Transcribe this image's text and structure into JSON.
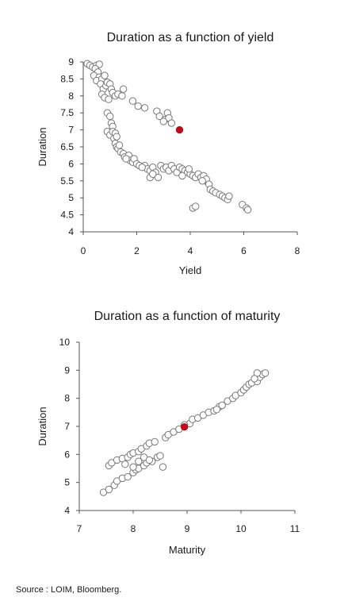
{
  "source": "Source : LOIM, Bloomberg.",
  "colors": {
    "point_fill": "#ffffff",
    "point_stroke": "#777777",
    "highlight": "#b3121d",
    "axis": "#555555"
  },
  "chart_data": [
    {
      "type": "scatter",
      "title": "Duration as a function of yield",
      "xlabel": "Yield",
      "ylabel": "Duration",
      "xlim": [
        0,
        8
      ],
      "ylim": [
        4,
        9
      ],
      "xticks": [
        "0",
        "2",
        "4",
        "6",
        "8"
      ],
      "yticks": [
        "4",
        "4.5",
        "5",
        "5.5",
        "6",
        "6.5",
        "7",
        "7.5",
        "8",
        "8.5",
        "9"
      ],
      "grid": false,
      "points": [
        [
          0.15,
          8.95
        ],
        [
          0.25,
          8.9
        ],
        [
          0.35,
          8.85
        ],
        [
          0.5,
          8.9
        ],
        [
          0.6,
          8.93
        ],
        [
          0.45,
          8.8
        ],
        [
          0.55,
          8.7
        ],
        [
          0.4,
          8.6
        ],
        [
          0.6,
          8.55
        ],
        [
          0.5,
          8.45
        ],
        [
          0.7,
          8.5
        ],
        [
          0.8,
          8.6
        ],
        [
          0.65,
          8.35
        ],
        [
          0.75,
          8.2
        ],
        [
          0.7,
          8.05
        ],
        [
          0.8,
          7.95
        ],
        [
          0.85,
          8.3
        ],
        [
          0.9,
          8.4
        ],
        [
          1.0,
          8.35
        ],
        [
          1.05,
          8.2
        ],
        [
          1.1,
          8.1
        ],
        [
          0.95,
          7.9
        ],
        [
          1.2,
          8.0
        ],
        [
          1.3,
          8.05
        ],
        [
          1.45,
          8.0
        ],
        [
          1.5,
          8.2
        ],
        [
          1.85,
          7.85
        ],
        [
          2.05,
          7.7
        ],
        [
          2.3,
          7.65
        ],
        [
          2.75,
          7.55
        ],
        [
          2.85,
          7.4
        ],
        [
          3.05,
          7.3
        ],
        [
          3.15,
          7.5
        ],
        [
          3.2,
          7.35
        ],
        [
          3.3,
          7.2
        ],
        [
          3.0,
          7.25
        ],
        [
          0.9,
          7.5
        ],
        [
          1.0,
          7.4
        ],
        [
          1.05,
          7.2
        ],
        [
          1.1,
          7.1
        ],
        [
          0.9,
          6.95
        ],
        [
          1.0,
          6.85
        ],
        [
          1.15,
          6.75
        ],
        [
          1.2,
          6.6
        ],
        [
          1.25,
          6.5
        ],
        [
          1.3,
          6.45
        ],
        [
          1.1,
          6.95
        ],
        [
          1.2,
          6.9
        ],
        [
          1.25,
          6.8
        ],
        [
          1.4,
          6.35
        ],
        [
          1.5,
          6.3
        ],
        [
          1.55,
          6.2
        ],
        [
          1.7,
          6.25
        ],
        [
          1.75,
          6.1
        ],
        [
          1.85,
          6.05
        ],
        [
          1.9,
          6.15
        ],
        [
          2.0,
          6.0
        ],
        [
          2.1,
          5.95
        ],
        [
          2.3,
          5.95
        ],
        [
          2.4,
          5.85
        ],
        [
          2.5,
          5.8
        ],
        [
          2.6,
          5.9
        ],
        [
          2.7,
          5.75
        ],
        [
          2.8,
          5.6
        ],
        [
          2.9,
          5.95
        ],
        [
          3.0,
          5.85
        ],
        [
          3.1,
          5.9
        ],
        [
          3.2,
          5.8
        ],
        [
          3.3,
          5.95
        ],
        [
          3.4,
          5.85
        ],
        [
          3.5,
          5.75
        ],
        [
          3.6,
          5.9
        ],
        [
          3.7,
          5.85
        ],
        [
          3.8,
          5.8
        ],
        [
          3.9,
          5.75
        ],
        [
          4.0,
          5.7
        ],
        [
          4.1,
          5.65
        ],
        [
          4.2,
          5.6
        ],
        [
          4.3,
          5.7
        ],
        [
          4.4,
          5.6
        ],
        [
          4.5,
          5.65
        ],
        [
          4.55,
          5.5
        ],
        [
          4.6,
          5.55
        ],
        [
          4.7,
          5.4
        ],
        [
          4.75,
          5.25
        ],
        [
          4.85,
          5.2
        ],
        [
          4.95,
          5.15
        ],
        [
          5.1,
          5.1
        ],
        [
          5.2,
          5.05
        ],
        [
          5.3,
          5.0
        ],
        [
          5.4,
          4.95
        ],
        [
          5.45,
          5.05
        ],
        [
          4.1,
          4.7
        ],
        [
          4.2,
          4.75
        ],
        [
          5.95,
          4.8
        ],
        [
          6.1,
          4.7
        ],
        [
          6.15,
          4.65
        ],
        [
          2.5,
          5.6
        ],
        [
          2.2,
          5.9
        ],
        [
          3.7,
          5.65
        ],
        [
          1.35,
          6.55
        ],
        [
          1.6,
          6.15
        ],
        [
          4.45,
          5.5
        ],
        [
          2.6,
          5.7
        ],
        [
          3.95,
          5.85
        ]
      ],
      "highlight": [
        3.6,
        7.0
      ]
    },
    {
      "type": "scatter",
      "title": "Duration as a function of maturity",
      "xlabel": "Maturity",
      "ylabel": "Duration",
      "xlim": [
        7,
        11
      ],
      "ylim": [
        4,
        10
      ],
      "xticks": [
        "7",
        "8",
        "9",
        "10",
        "11"
      ],
      "yticks": [
        "4",
        "5",
        "6",
        "7",
        "8",
        "9",
        "10"
      ],
      "grid": false,
      "points": [
        [
          7.45,
          4.65
        ],
        [
          7.55,
          4.75
        ],
        [
          7.65,
          4.9
        ],
        [
          7.7,
          5.05
        ],
        [
          7.8,
          5.15
        ],
        [
          7.9,
          5.2
        ],
        [
          8.0,
          5.35
        ],
        [
          8.05,
          5.45
        ],
        [
          8.1,
          5.5
        ],
        [
          8.2,
          5.6
        ],
        [
          8.25,
          5.7
        ],
        [
          8.35,
          5.75
        ],
        [
          8.45,
          5.9
        ],
        [
          8.5,
          5.95
        ],
        [
          8.55,
          5.55
        ],
        [
          7.55,
          5.6
        ],
        [
          7.6,
          5.7
        ],
        [
          7.7,
          5.8
        ],
        [
          7.8,
          5.85
        ],
        [
          7.9,
          5.9
        ],
        [
          7.95,
          6.0
        ],
        [
          8.0,
          6.05
        ],
        [
          8.1,
          6.1
        ],
        [
          8.15,
          6.2
        ],
        [
          8.25,
          6.3
        ],
        [
          8.3,
          6.4
        ],
        [
          8.4,
          6.45
        ],
        [
          8.0,
          5.55
        ],
        [
          8.1,
          5.75
        ],
        [
          8.2,
          5.9
        ],
        [
          8.3,
          5.8
        ],
        [
          7.85,
          5.65
        ],
        [
          8.6,
          6.6
        ],
        [
          8.65,
          6.7
        ],
        [
          8.75,
          6.8
        ],
        [
          8.85,
          6.9
        ],
        [
          9.05,
          7.1
        ],
        [
          9.1,
          7.25
        ],
        [
          9.2,
          7.3
        ],
        [
          9.3,
          7.4
        ],
        [
          9.4,
          7.5
        ],
        [
          9.5,
          7.55
        ],
        [
          9.6,
          7.7
        ],
        [
          9.65,
          7.75
        ],
        [
          9.75,
          7.9
        ],
        [
          9.85,
          8.0
        ],
        [
          9.9,
          8.1
        ],
        [
          10.0,
          8.2
        ],
        [
          10.05,
          8.3
        ],
        [
          10.1,
          8.4
        ],
        [
          10.15,
          8.5
        ],
        [
          10.2,
          8.55
        ],
        [
          10.3,
          8.6
        ],
        [
          10.35,
          8.75
        ],
        [
          10.4,
          8.85
        ],
        [
          10.45,
          8.9
        ],
        [
          10.3,
          8.9
        ],
        [
          9.55,
          7.6
        ],
        [
          8.95,
          7.05
        ],
        [
          10.25,
          8.7
        ]
      ],
      "highlight": [
        8.95,
        6.98
      ]
    }
  ]
}
